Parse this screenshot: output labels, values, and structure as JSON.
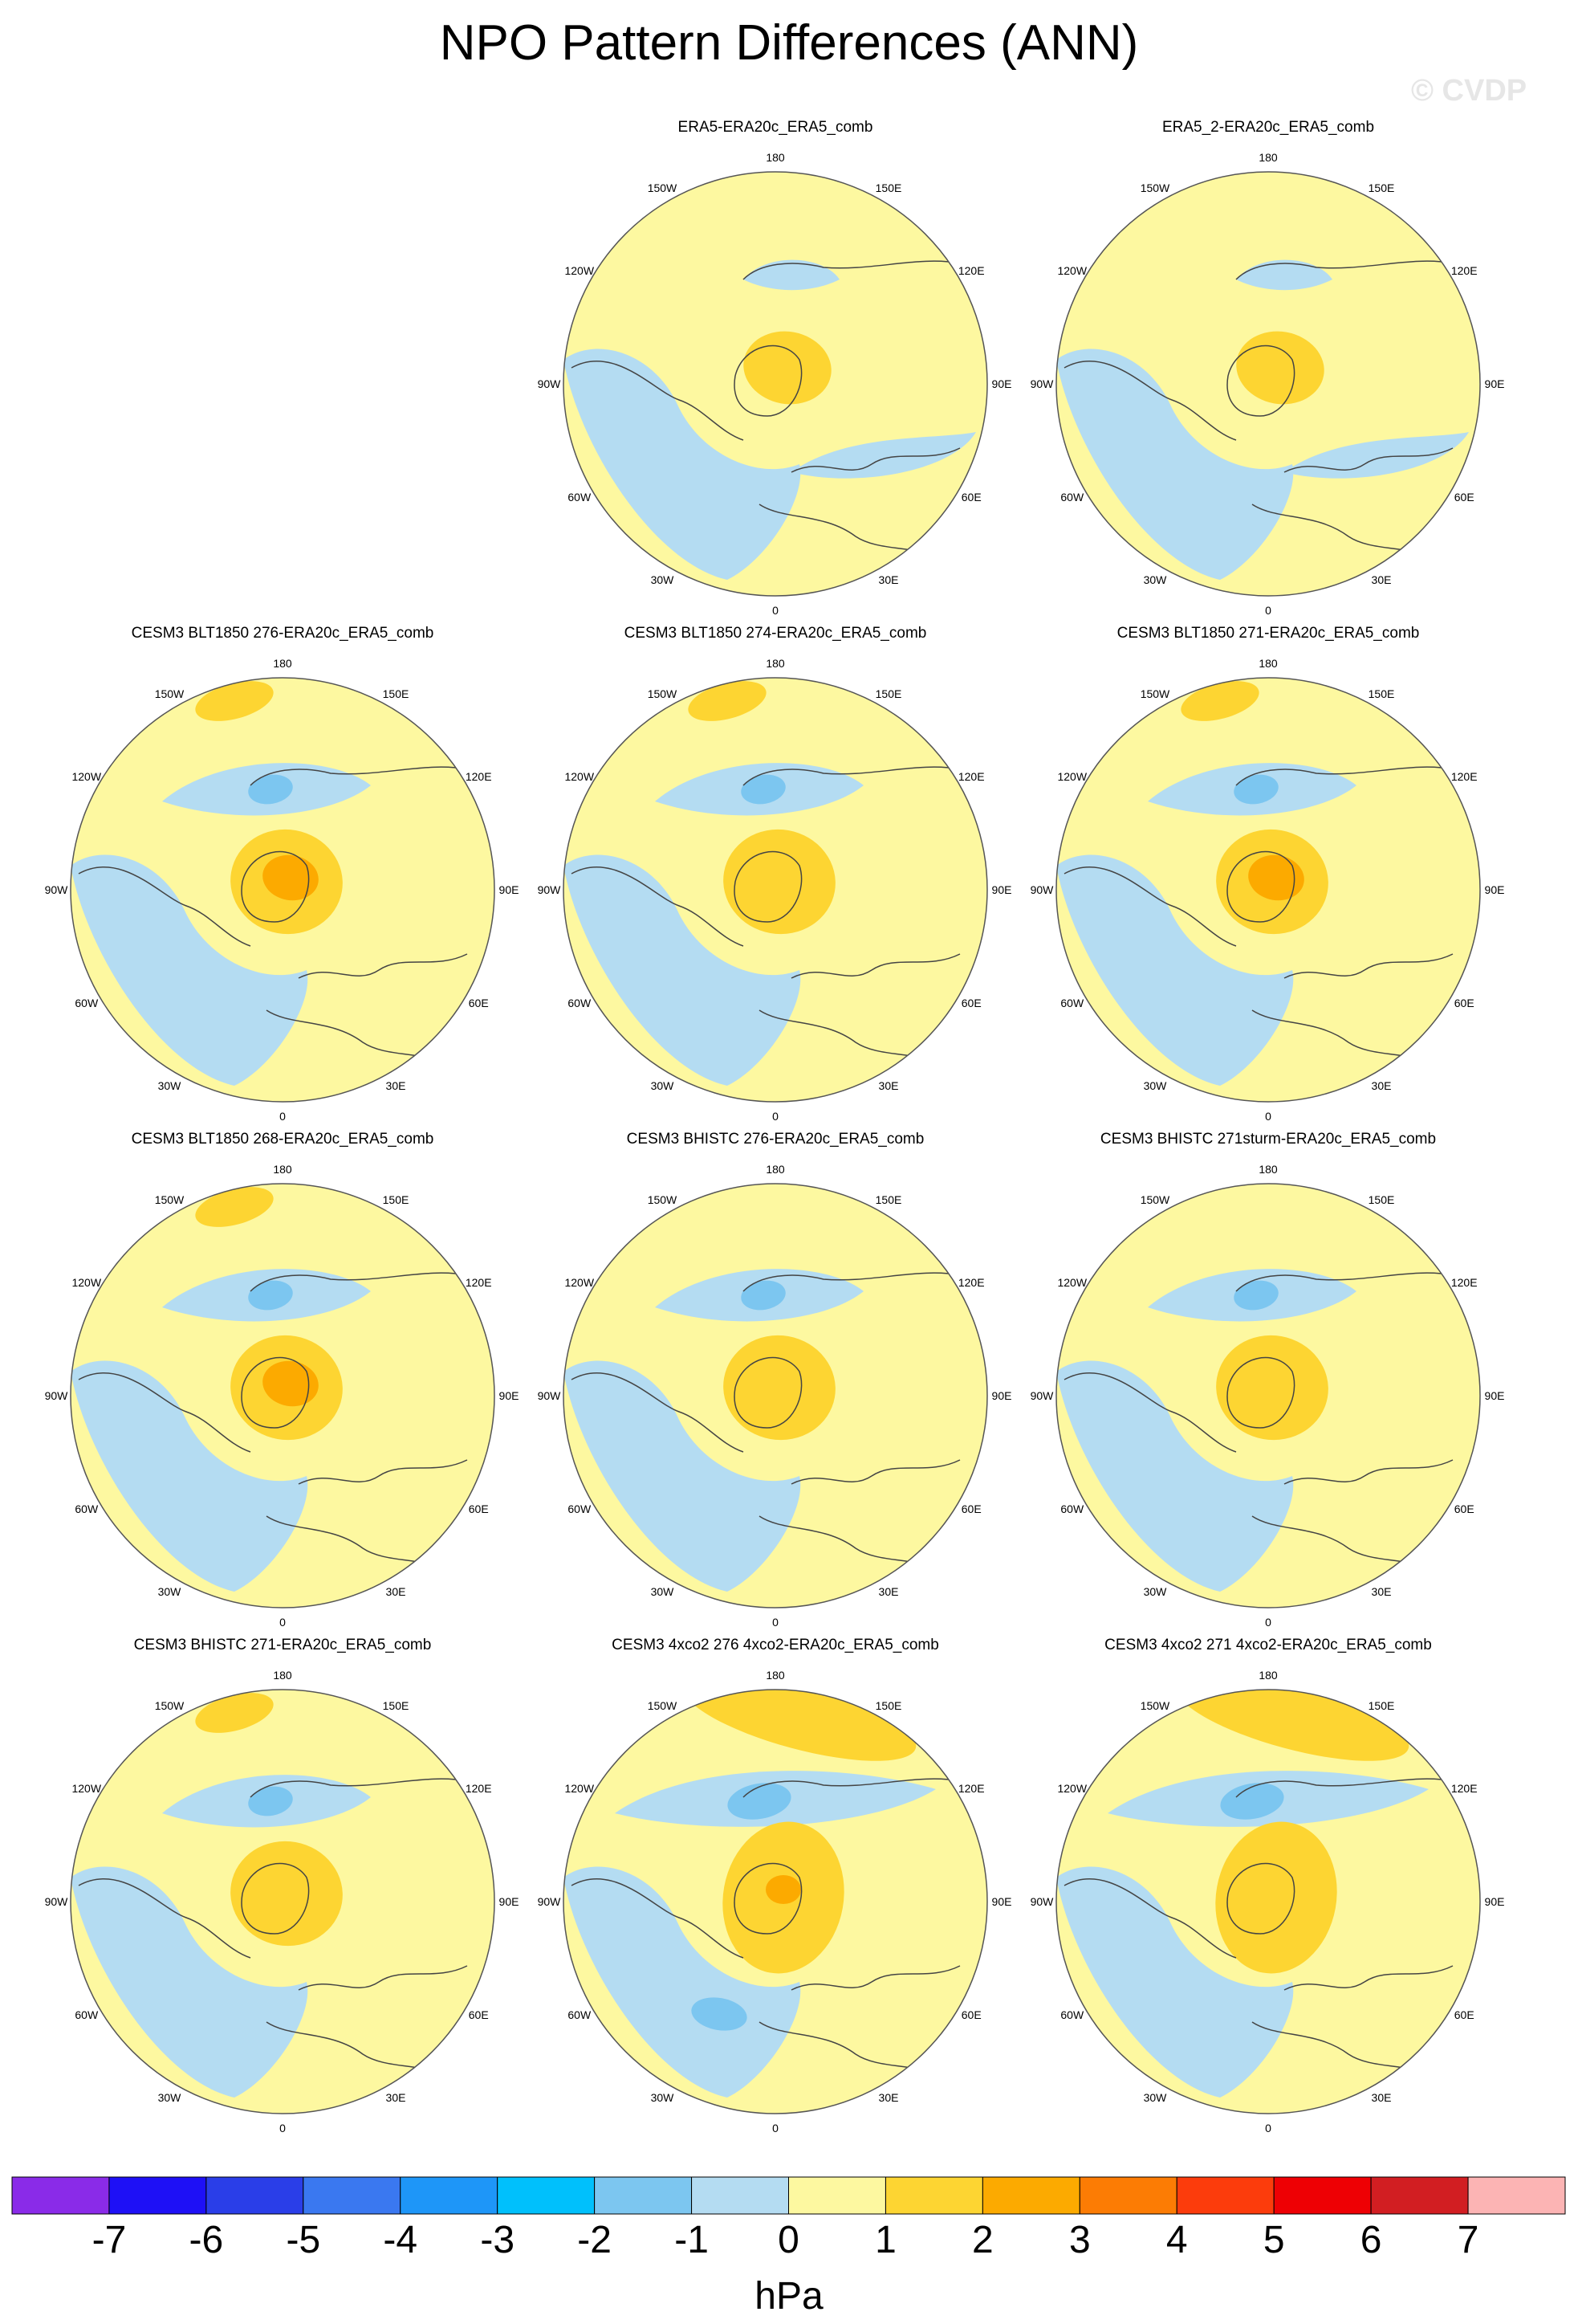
{
  "title": "NPO Pattern Differences (ANN)",
  "watermark": "© CVDP",
  "colors": {
    "neg1": "#b4dcf2",
    "neg2": "#7cc6f0",
    "neg3": "#48b0f0",
    "pos1": "#fdf8a0",
    "pos2": "#fdd532",
    "pos3": "#fcaa00",
    "land": "#444444"
  },
  "lon_labels": {
    "top": "180",
    "bottom": "0",
    "left": "90W",
    "right": "90E",
    "upper_left_1": "150W",
    "upper_left_2": "120W",
    "lower_left_1": "60W",
    "lower_left_2": "30W",
    "upper_right_1": "150E",
    "upper_right_2": "120E",
    "lower_right_1": "60E",
    "lower_right_2": "30E"
  },
  "panels": [
    {
      "id": "p1",
      "title": "ERA5-ERA20c_ERA5_comb",
      "pattern": "era5"
    },
    {
      "id": "p2",
      "title": "ERA5_2-ERA20c_ERA5_comb",
      "pattern": "era5b"
    },
    {
      "id": "p3",
      "title": "CESM3 BLT1850 276-ERA20c_ERA5_comb",
      "pattern": "strong"
    },
    {
      "id": "p4",
      "title": "CESM3 BLT1850 274-ERA20c_ERA5_comb",
      "pattern": "medium"
    },
    {
      "id": "p5",
      "title": "CESM3 BLT1850 271-ERA20c_ERA5_comb",
      "pattern": "strong"
    },
    {
      "id": "p6",
      "title": "CESM3 BLT1850 268-ERA20c_ERA5_comb",
      "pattern": "strong"
    },
    {
      "id": "p7",
      "title": "CESM3 BHISTC 276-ERA20c_ERA5_comb",
      "pattern": "weak"
    },
    {
      "id": "p8",
      "title": "CESM3 BHISTC 271sturm-ERA20c_ERA5_comb",
      "pattern": "weak"
    },
    {
      "id": "p9",
      "title": "CESM3 BHISTC 271-ERA20c_ERA5_comb",
      "pattern": "medium"
    },
    {
      "id": "p10",
      "title": "CESM3 4xco2 276 4xco2-ERA20c_ERA5_comb",
      "pattern": "co2"
    },
    {
      "id": "p11",
      "title": "CESM3 4xco2 271 4xco2-ERA20c_ERA5_comb",
      "pattern": "co2b"
    }
  ],
  "colorbar": {
    "unit": "hPa",
    "labels": [
      "-7",
      "-6",
      "-5",
      "-4",
      "-3",
      "-2",
      "-1",
      "0",
      "1",
      "2",
      "3",
      "4",
      "5",
      "6",
      "7"
    ],
    "colors": [
      "#8a2be8",
      "#1e10f6",
      "#2a3ee8",
      "#3a78f0",
      "#1e96f8",
      "#00c0fc",
      "#7cc6f0",
      "#b4dcf2",
      "#fdf8a0",
      "#fdd532",
      "#fcaa00",
      "#fc7c04",
      "#fc3c0c",
      "#ee0004",
      "#d21e22",
      "#fcb4b4"
    ]
  }
}
